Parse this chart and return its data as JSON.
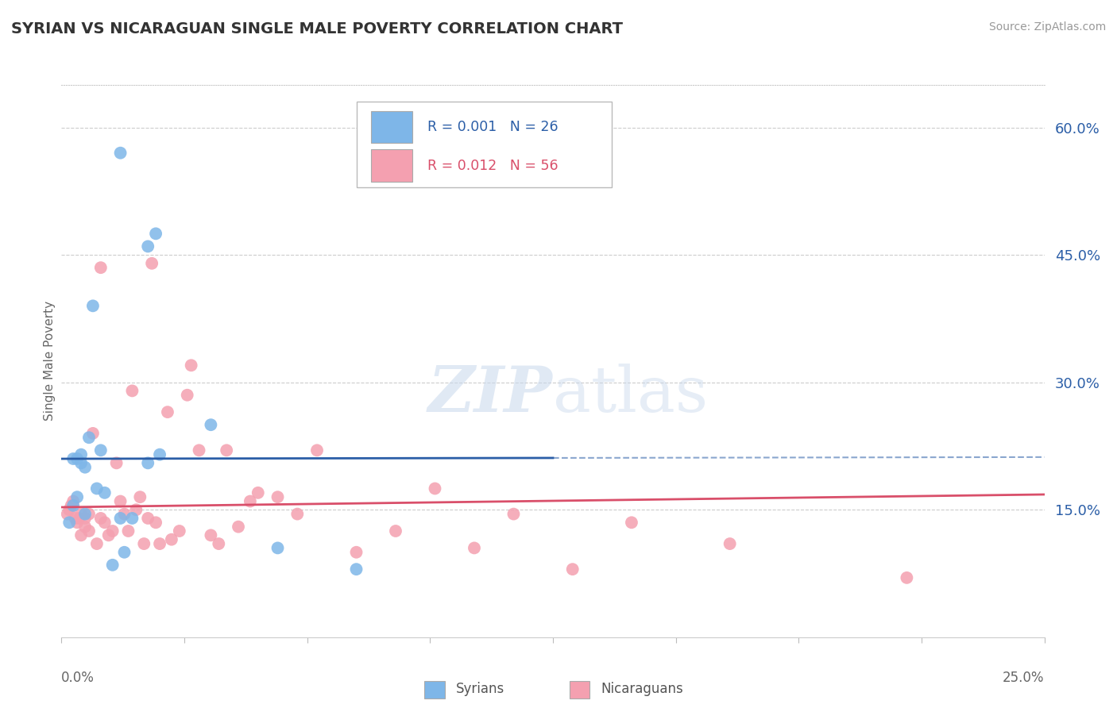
{
  "title": "SYRIAN VS NICARAGUAN SINGLE MALE POVERTY CORRELATION CHART",
  "source": "Source: ZipAtlas.com",
  "ylabel": "Single Male Poverty",
  "xlim": [
    0.0,
    25.0
  ],
  "ylim": [
    0.0,
    65.0
  ],
  "yticks": [
    15.0,
    30.0,
    45.0,
    60.0
  ],
  "xticks": [
    0.0,
    3.125,
    6.25,
    9.375,
    12.5,
    15.625,
    18.75,
    21.875,
    25.0
  ],
  "syrians_R": "0.001",
  "syrians_N": "26",
  "nicaraguans_R": "0.012",
  "nicaraguans_N": "56",
  "syrian_color": "#7EB6E8",
  "nicaraguan_color": "#F4A0B0",
  "syrian_line_color": "#2B5EA7",
  "nicaraguan_line_color": "#D94F6A",
  "background_color": "#FFFFFF",
  "grid_color": "#CCCCCC",
  "watermark": "ZIPatlas",
  "syrians_x": [
    1.5,
    2.2,
    2.4,
    2.2,
    2.5,
    0.3,
    0.5,
    0.7,
    0.4,
    0.6,
    0.5,
    0.9,
    1.1,
    0.4,
    0.3,
    0.6,
    1.5,
    1.8,
    5.5,
    1.3,
    1.6,
    0.2,
    3.8,
    0.8,
    7.5,
    1.0
  ],
  "syrians_y": [
    57.0,
    46.0,
    47.5,
    20.5,
    21.5,
    21.0,
    21.5,
    23.5,
    21.0,
    20.0,
    20.5,
    17.5,
    17.0,
    16.5,
    15.5,
    14.5,
    14.0,
    14.0,
    10.5,
    8.5,
    10.0,
    13.5,
    25.0,
    39.0,
    8.0,
    22.0
  ],
  "nicaraguans_x": [
    0.15,
    0.2,
    0.25,
    0.3,
    0.35,
    0.4,
    0.45,
    0.5,
    0.5,
    0.6,
    0.6,
    0.7,
    0.7,
    0.8,
    0.9,
    1.0,
    1.0,
    1.1,
    1.2,
    1.3,
    1.4,
    1.5,
    1.6,
    1.7,
    1.8,
    1.9,
    2.0,
    2.1,
    2.2,
    2.3,
    2.4,
    2.5,
    2.7,
    2.8,
    3.0,
    3.2,
    3.5,
    3.8,
    4.0,
    4.2,
    4.5,
    5.0,
    5.5,
    6.0,
    6.5,
    7.5,
    8.5,
    9.5,
    10.5,
    11.5,
    13.0,
    14.5,
    17.0,
    21.5,
    3.3,
    4.8
  ],
  "nicaraguans_y": [
    14.5,
    15.0,
    15.5,
    16.0,
    14.0,
    13.5,
    14.0,
    14.5,
    12.0,
    13.0,
    14.0,
    14.5,
    12.5,
    24.0,
    11.0,
    43.5,
    14.0,
    13.5,
    12.0,
    12.5,
    20.5,
    16.0,
    14.5,
    12.5,
    29.0,
    15.0,
    16.5,
    11.0,
    14.0,
    44.0,
    13.5,
    11.0,
    26.5,
    11.5,
    12.5,
    28.5,
    22.0,
    12.0,
    11.0,
    22.0,
    13.0,
    17.0,
    16.5,
    14.5,
    22.0,
    10.0,
    12.5,
    17.5,
    10.5,
    14.5,
    8.0,
    13.5,
    11.0,
    7.0,
    32.0,
    16.0
  ],
  "syrian_line_y_start": 21.0,
  "syrian_line_y_end": 21.2,
  "syrian_line_x_solid_end": 12.5,
  "nicaraguan_line_y_start": 15.3,
  "nicaraguan_line_y_end": 16.8
}
